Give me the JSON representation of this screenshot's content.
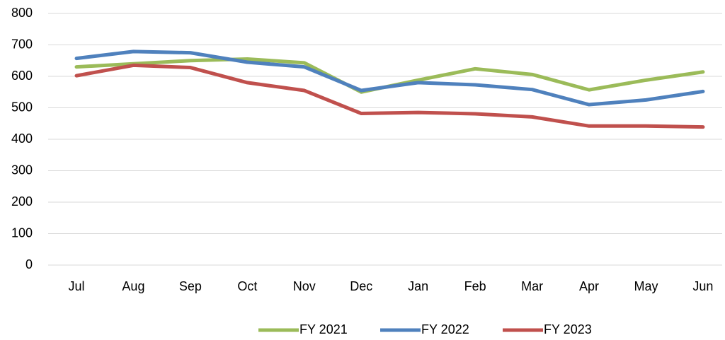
{
  "chart_data": {
    "type": "line",
    "categories": [
      "Jul",
      "Aug",
      "Sep",
      "Oct",
      "Nov",
      "Dec",
      "Jan",
      "Feb",
      "Mar",
      "Apr",
      "May",
      "Jun"
    ],
    "series": [
      {
        "name": "FY 2021",
        "color": "#9bbb59",
        "values": [
          630,
          640,
          650,
          655,
          643,
          550,
          588,
          624,
          606,
          557,
          588,
          614
        ]
      },
      {
        "name": "FY 2022",
        "color": "#4f81bd",
        "values": [
          657,
          679,
          675,
          645,
          630,
          555,
          580,
          573,
          558,
          510,
          525,
          552
        ]
      },
      {
        "name": "FY 2023",
        "color": "#c0504d",
        "values": [
          602,
          635,
          628,
          580,
          555,
          482,
          485,
          481,
          471,
          442,
          442,
          439
        ]
      }
    ],
    "ylim": [
      0,
      800
    ],
    "yticks": [
      0,
      100,
      200,
      300,
      400,
      500,
      600,
      700,
      800
    ],
    "grid": true,
    "legend": "bottom"
  }
}
